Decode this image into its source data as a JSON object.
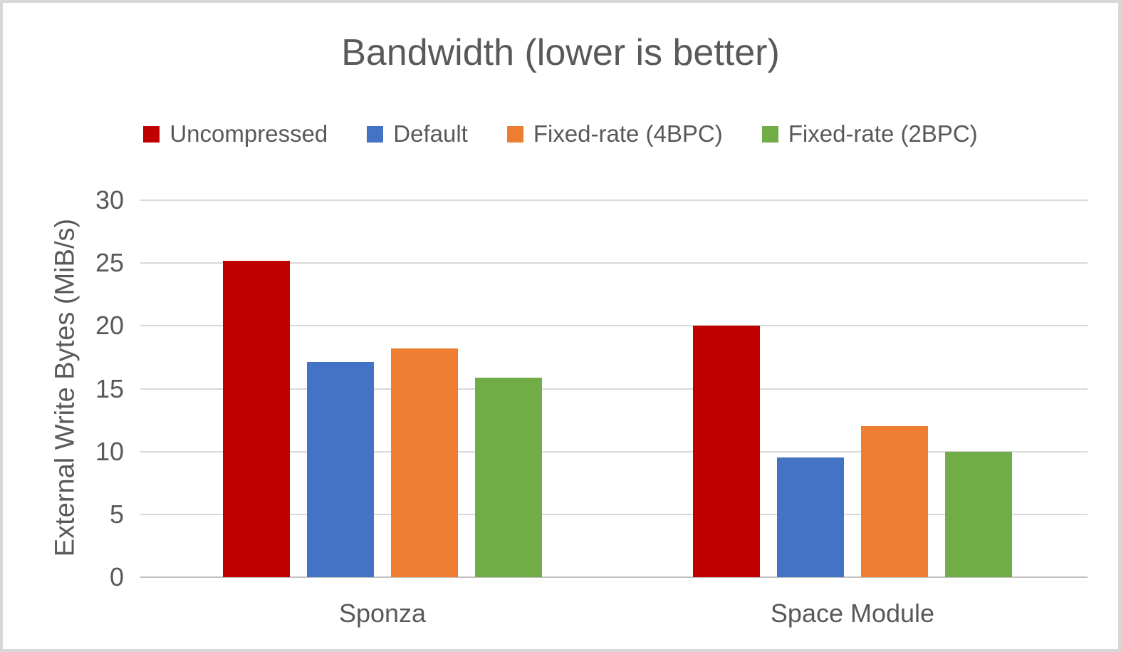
{
  "frame": {
    "background": "#ffffff",
    "border_color": "#d8d8d8"
  },
  "chart_data": {
    "type": "bar",
    "title": "Bandwidth (lower is better)",
    "categories": [
      "Sponza",
      "Space Module"
    ],
    "series": [
      {
        "name": "Uncompressed",
        "color": "#c00000",
        "values": [
          25.2,
          20.0
        ]
      },
      {
        "name": "Default",
        "color": "#4472c4",
        "values": [
          17.1,
          9.5
        ]
      },
      {
        "name": "Fixed-rate (4BPC)",
        "color": "#ed7d31",
        "values": [
          18.2,
          12.0
        ]
      },
      {
        "name": "Fixed-rate (2BPC)",
        "color": "#70ad47",
        "values": [
          15.9,
          10.0
        ]
      }
    ],
    "xlabel": "",
    "ylabel": "External Write Bytes (MiB/s)",
    "ylim": [
      0,
      30
    ],
    "yticks": [
      0,
      5,
      10,
      15,
      20,
      25,
      30
    ],
    "grid": true,
    "legend_position": "top-center",
    "text_color": "#595959",
    "gridline_color": "#d9d9d9",
    "axis_line_color": "#c0c0c0"
  }
}
